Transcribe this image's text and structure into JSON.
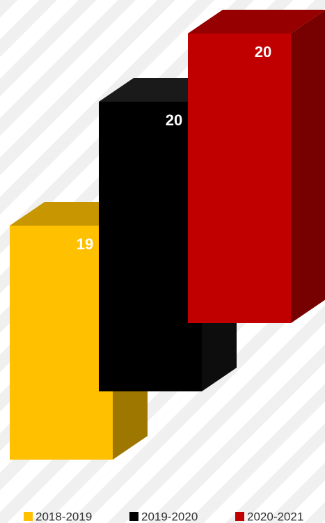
{
  "chart_data": {
    "type": "bar3d",
    "series": [
      {
        "name": "2018-2019",
        "color": "#FFC000",
        "values": [
          19
        ]
      },
      {
        "name": "2019-2020",
        "color": "#000000",
        "values": [
          20
        ]
      },
      {
        "name": "2020-2021",
        "color": "#C00000",
        "values": [
          20
        ]
      }
    ],
    "ylim": [
      14.8,
      20.2
    ],
    "legend": "bottom"
  }
}
